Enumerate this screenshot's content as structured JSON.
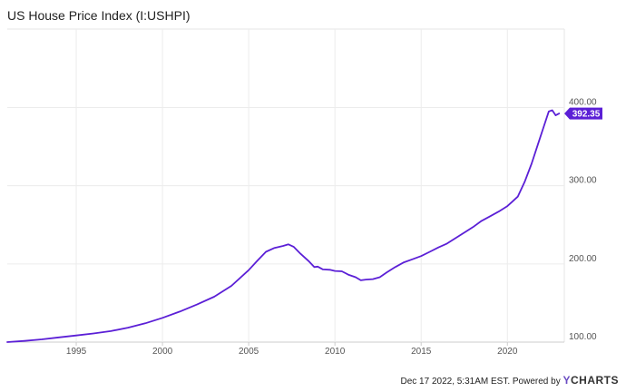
{
  "chart_data": {
    "type": "line",
    "title": "US House Price Index (I:USHPI)",
    "xlabel": "",
    "ylabel": "",
    "xlim": [
      1991,
      2023.3
    ],
    "ylim": [
      100,
      450
    ],
    "x_ticks": [
      {
        "value": 1995,
        "label": "1995"
      },
      {
        "value": 2000,
        "label": "2000"
      },
      {
        "value": 2005,
        "label": "2005"
      },
      {
        "value": 2010,
        "label": "2010"
      },
      {
        "value": 2015,
        "label": "2015"
      },
      {
        "value": 2020,
        "label": "2020"
      }
    ],
    "y_ticks": [
      {
        "value": 100,
        "label": "100.00"
      },
      {
        "value": 200,
        "label": "200.00"
      },
      {
        "value": 300,
        "label": "300.00"
      },
      {
        "value": 400,
        "label": "400.00"
      }
    ],
    "grid": true,
    "line_color": "#5b1fd6",
    "last_value_label": "392.35",
    "last_value": 392.35,
    "series": [
      {
        "values": [
          [
            1991.0,
            100.0
          ],
          [
            1992.0,
            101.5
          ],
          [
            1993.0,
            103.5
          ],
          [
            1994.0,
            106.0
          ],
          [
            1995.0,
            108.5
          ],
          [
            1996.0,
            111.0
          ],
          [
            1997.0,
            114.0
          ],
          [
            1998.0,
            118.5
          ],
          [
            1999.0,
            124.0
          ],
          [
            2000.0,
            131.0
          ],
          [
            2001.0,
            139.0
          ],
          [
            2002.0,
            148.0
          ],
          [
            2003.0,
            158.0
          ],
          [
            2004.0,
            172.0
          ],
          [
            2005.0,
            192.0
          ],
          [
            2005.5,
            204.0
          ],
          [
            2006.0,
            215.5
          ],
          [
            2006.5,
            220.5
          ],
          [
            2007.0,
            223.0
          ],
          [
            2007.3,
            225.0
          ],
          [
            2007.6,
            222.0
          ],
          [
            2008.0,
            213.0
          ],
          [
            2008.5,
            203.0
          ],
          [
            2008.8,
            196.0
          ],
          [
            2009.0,
            196.5
          ],
          [
            2009.3,
            193.0
          ],
          [
            2009.7,
            192.5
          ],
          [
            2010.0,
            191.0
          ],
          [
            2010.4,
            190.5
          ],
          [
            2010.8,
            186.0
          ],
          [
            2011.2,
            183.0
          ],
          [
            2011.5,
            179.0
          ],
          [
            2011.8,
            180.0
          ],
          [
            2012.2,
            180.5
          ],
          [
            2012.6,
            183.0
          ],
          [
            2013.0,
            189.0
          ],
          [
            2013.5,
            196.0
          ],
          [
            2014.0,
            202.0
          ],
          [
            2014.5,
            206.0
          ],
          [
            2015.0,
            210.0
          ],
          [
            2015.5,
            215.5
          ],
          [
            2016.0,
            221.0
          ],
          [
            2016.5,
            226.0
          ],
          [
            2017.0,
            233.0
          ],
          [
            2017.5,
            240.0
          ],
          [
            2018.0,
            247.0
          ],
          [
            2018.5,
            255.0
          ],
          [
            2019.0,
            261.0
          ],
          [
            2019.5,
            267.0
          ],
          [
            2020.0,
            274.0
          ],
          [
            2020.3,
            280.0
          ],
          [
            2020.6,
            286.0
          ],
          [
            2021.0,
            305.0
          ],
          [
            2021.4,
            328.0
          ],
          [
            2021.8,
            355.0
          ],
          [
            2022.1,
            375.0
          ],
          [
            2022.4,
            395.0
          ],
          [
            2022.6,
            396.5
          ],
          [
            2022.8,
            390.0
          ],
          [
            2023.0,
            392.35
          ]
        ]
      }
    ]
  },
  "footer": {
    "date_text": "Dec 17 2022, 5:31AM EST.",
    "powered_text": "Powered by",
    "brand_y": "Y",
    "brand_rest": "CHARTS"
  }
}
